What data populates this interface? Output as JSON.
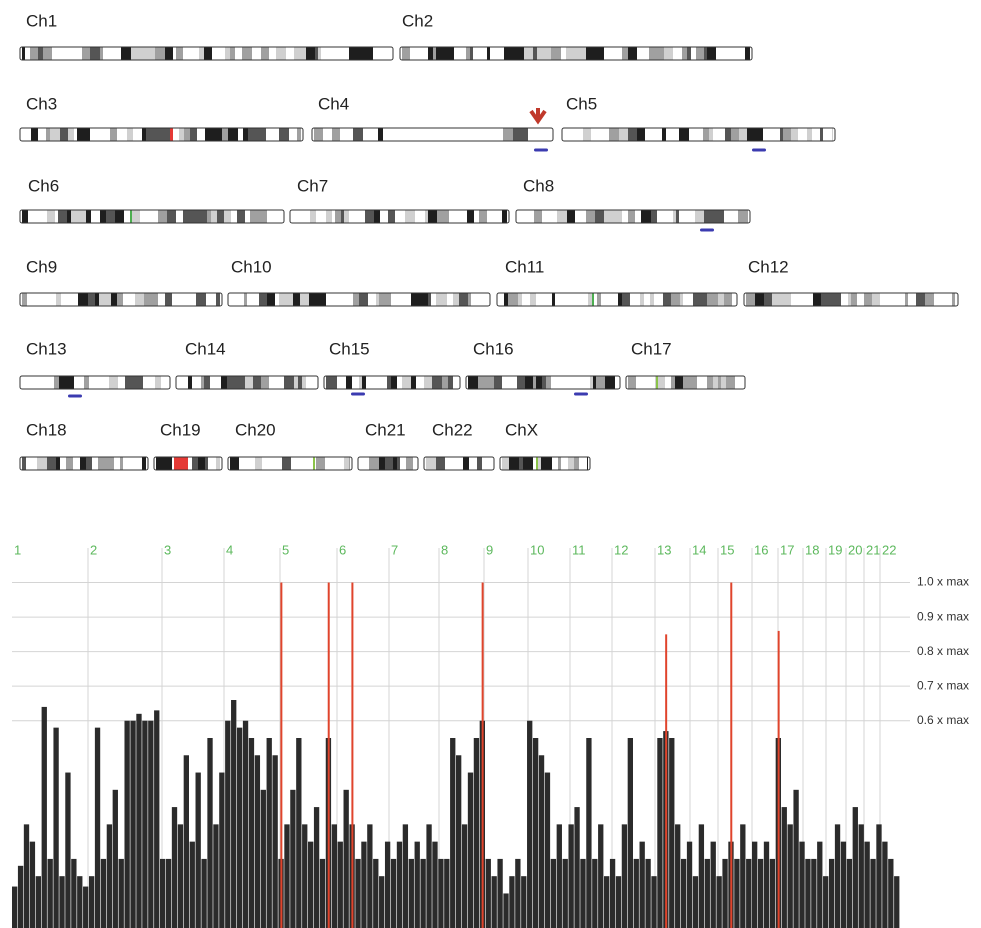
{
  "karyogram": {
    "chromosomes": [
      "Ch1",
      "Ch2",
      "Ch3",
      "Ch4",
      "Ch5",
      "Ch6",
      "Ch7",
      "Ch8",
      "Ch9",
      "Ch10",
      "Ch11",
      "Ch12",
      "Ch13",
      "Ch14",
      "Ch15",
      "Ch16",
      "Ch17",
      "Ch18",
      "Ch19",
      "Ch20",
      "Ch21",
      "Ch22",
      "ChX"
    ]
  },
  "chart_data": {
    "type": "bar",
    "x_labels": [
      "1",
      "2",
      "3",
      "4",
      "5",
      "6",
      "7",
      "8",
      "9",
      "10",
      "11",
      "12",
      "13",
      "14",
      "15",
      "16",
      "17",
      "18",
      "19",
      "20",
      "21",
      "22"
    ],
    "label_color": "#5cb85c",
    "ylim": [
      0,
      1.1
    ],
    "yticks": [
      {
        "value": 1,
        "label": "1.0 x max"
      },
      {
        "value": 0.9,
        "label": "0.9 x max"
      },
      {
        "value": 0.8,
        "label": "0.8 x max"
      },
      {
        "value": 0.7,
        "label": "0.7 x max"
      },
      {
        "value": 0.6,
        "label": "0.6 x max"
      }
    ],
    "grid": true,
    "series": [
      {
        "color": "#2b2b2b",
        "values": [
          0.12,
          0.18,
          0.3,
          0.25,
          0.15,
          0.64,
          0.2,
          0.58,
          0.15,
          0.45,
          0.2,
          0.15,
          0.12,
          0.15,
          0.58,
          0.2,
          0.3,
          0.4,
          0.2,
          0.6,
          0.6,
          0.62,
          0.6,
          0.6,
          0.63,
          0.2,
          0.2,
          0.35,
          0.3,
          0.5,
          0.25,
          0.45,
          0.2,
          0.55,
          0.3,
          0.45,
          0.6,
          0.66,
          0.58,
          0.6,
          0.55,
          0.5,
          0.4,
          0.55,
          0.5,
          0.2,
          0.3,
          0.4,
          0.55,
          0.3,
          0.25,
          0.35,
          0.2,
          0.55,
          0.3,
          0.25,
          0.4,
          0.3,
          0.2,
          0.25,
          0.3,
          0.2,
          0.15,
          0.25,
          0.2,
          0.25,
          0.3,
          0.2,
          0.25,
          0.2,
          0.3,
          0.25,
          0.2,
          0.2,
          0.55,
          0.5,
          0.3,
          0.45,
          0.55,
          0.6,
          0.2,
          0.15,
          0.2,
          0.1,
          0.15,
          0.2,
          0.15,
          0.6,
          0.55,
          0.5,
          0.45,
          0.2,
          0.3,
          0.2,
          0.3,
          0.35,
          0.2,
          0.55,
          0.2,
          0.3,
          0.15,
          0.2,
          0.15,
          0.3,
          0.55,
          0.2,
          0.25,
          0.2,
          0.15,
          0.55,
          0.57,
          0.55,
          0.3,
          0.2,
          0.25,
          0.15,
          0.3,
          0.2,
          0.25,
          0.15,
          0.2,
          0.25,
          0.2,
          0.3,
          0.2,
          0.25,
          0.2,
          0.25,
          0.2,
          0.55,
          0.35,
          0.3,
          0.4,
          0.25,
          0.2,
          0.2,
          0.25,
          0.15,
          0.2,
          0.3,
          0.25,
          0.2,
          0.35,
          0.3,
          0.25,
          0.2,
          0.3,
          0.25,
          0.2,
          0.15
        ]
      },
      {
        "color": "#e0442c",
        "values": [
          null,
          null,
          null,
          null,
          null,
          null,
          null,
          null,
          null,
          null,
          null,
          null,
          null,
          null,
          null,
          null,
          null,
          null,
          null,
          null,
          null,
          null,
          null,
          null,
          null,
          null,
          null,
          null,
          null,
          null,
          null,
          null,
          null,
          null,
          null,
          null,
          null,
          null,
          null,
          null,
          null,
          null,
          null,
          null,
          null,
          1.0,
          null,
          null,
          null,
          null,
          null,
          null,
          null,
          1.0,
          null,
          null,
          null,
          1.0,
          null,
          null,
          null,
          null,
          null,
          null,
          null,
          null,
          null,
          null,
          null,
          null,
          null,
          null,
          null,
          null,
          null,
          null,
          null,
          null,
          null,
          1.0,
          null,
          null,
          null,
          null,
          null,
          null,
          null,
          null,
          null,
          null,
          null,
          null,
          null,
          null,
          null,
          null,
          null,
          null,
          null,
          null,
          null,
          null,
          null,
          null,
          null,
          null,
          null,
          null,
          null,
          null,
          0.85,
          null,
          null,
          null,
          null,
          null,
          null,
          null,
          null,
          null,
          null,
          1.0,
          null,
          null,
          null,
          null,
          null,
          null,
          null,
          0.86,
          null,
          null,
          null,
          null,
          null,
          null,
          null,
          null,
          null,
          null,
          null,
          null,
          null,
          null,
          null,
          null,
          null,
          null,
          null,
          null
        ]
      }
    ]
  }
}
